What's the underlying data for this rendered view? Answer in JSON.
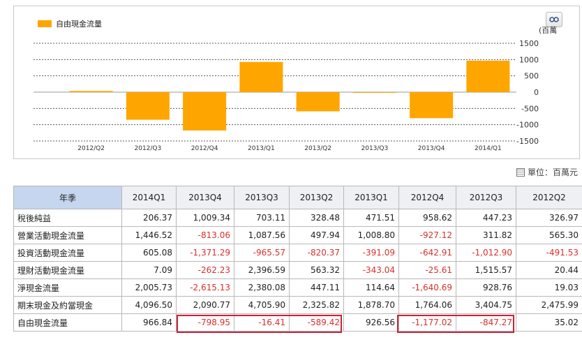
{
  "chart_data": {
    "type": "bar",
    "series": [
      {
        "name": "自由現金流量",
        "color": "#ffa500",
        "values": [
          35.02,
          -847.27,
          -1177.02,
          926.56,
          -589.42,
          -16.41,
          -798.95,
          966.84
        ]
      }
    ],
    "categories": [
      "2012/Q2",
      "2012/Q3",
      "2012/Q4",
      "2013/Q1",
      "2013/Q2",
      "2013/Q3",
      "2013/Q4",
      "2014/Q1"
    ],
    "y_ticks": [
      "1500",
      "1000",
      "500",
      "0",
      "-500",
      "-1000",
      "-1500"
    ],
    "ylim": [
      -1500,
      1500
    ],
    "ylabel": "(百萬",
    "legend_position": "top-left",
    "grid": true
  },
  "legend": {
    "label": "自由現金流量"
  },
  "export_icon": "link-icon",
  "unit": {
    "text": "單位：百萬元",
    "icon": "table-icon"
  },
  "table": {
    "header_label": "年季",
    "columns": [
      "2014Q1",
      "2013Q4",
      "2013Q3",
      "2013Q2",
      "2013Q1",
      "2012Q4",
      "2012Q3",
      "2012Q2"
    ],
    "rows": [
      {
        "label": "稅後純益",
        "values": [
          "206.37",
          "1,009.34",
          "703.11",
          "328.48",
          "471.51",
          "958.62",
          "447.23",
          "326.97"
        ]
      },
      {
        "label": "營業活動現金流量",
        "values": [
          "1,446.52",
          "-813.06",
          "1,087.56",
          "497.94",
          "1,008.80",
          "-927.12",
          "311.82",
          "565.30"
        ]
      },
      {
        "label": "投資活動現金流量",
        "values": [
          "605.08",
          "-1,371.29",
          "-965.57",
          "-820.37",
          "-391.09",
          "-642.91",
          "-1,012.90",
          "-491.53"
        ]
      },
      {
        "label": "理財活動現金流量",
        "values": [
          "7.09",
          "-262.23",
          "2,396.59",
          "563.32",
          "-343.04",
          "-25.61",
          "1,515.57",
          "20.44"
        ]
      },
      {
        "label": "淨現金流量",
        "values": [
          "2,005.73",
          "-2,615.13",
          "2,380.08",
          "447.11",
          "114.64",
          "-1,640.69",
          "928.76",
          "19.03"
        ]
      },
      {
        "label": "期末現金及約當現金",
        "values": [
          "4,096.50",
          "2,090.77",
          "4,705.90",
          "2,325.82",
          "1,878.70",
          "1,764.06",
          "3,404.75",
          "2,475.99"
        ]
      },
      {
        "label": "自由現金流量",
        "values": [
          "966.84",
          "-798.95",
          "-16.41",
          "-589.42",
          "926.56",
          "-1,177.02",
          "-847.27",
          "35.02"
        ]
      }
    ]
  }
}
